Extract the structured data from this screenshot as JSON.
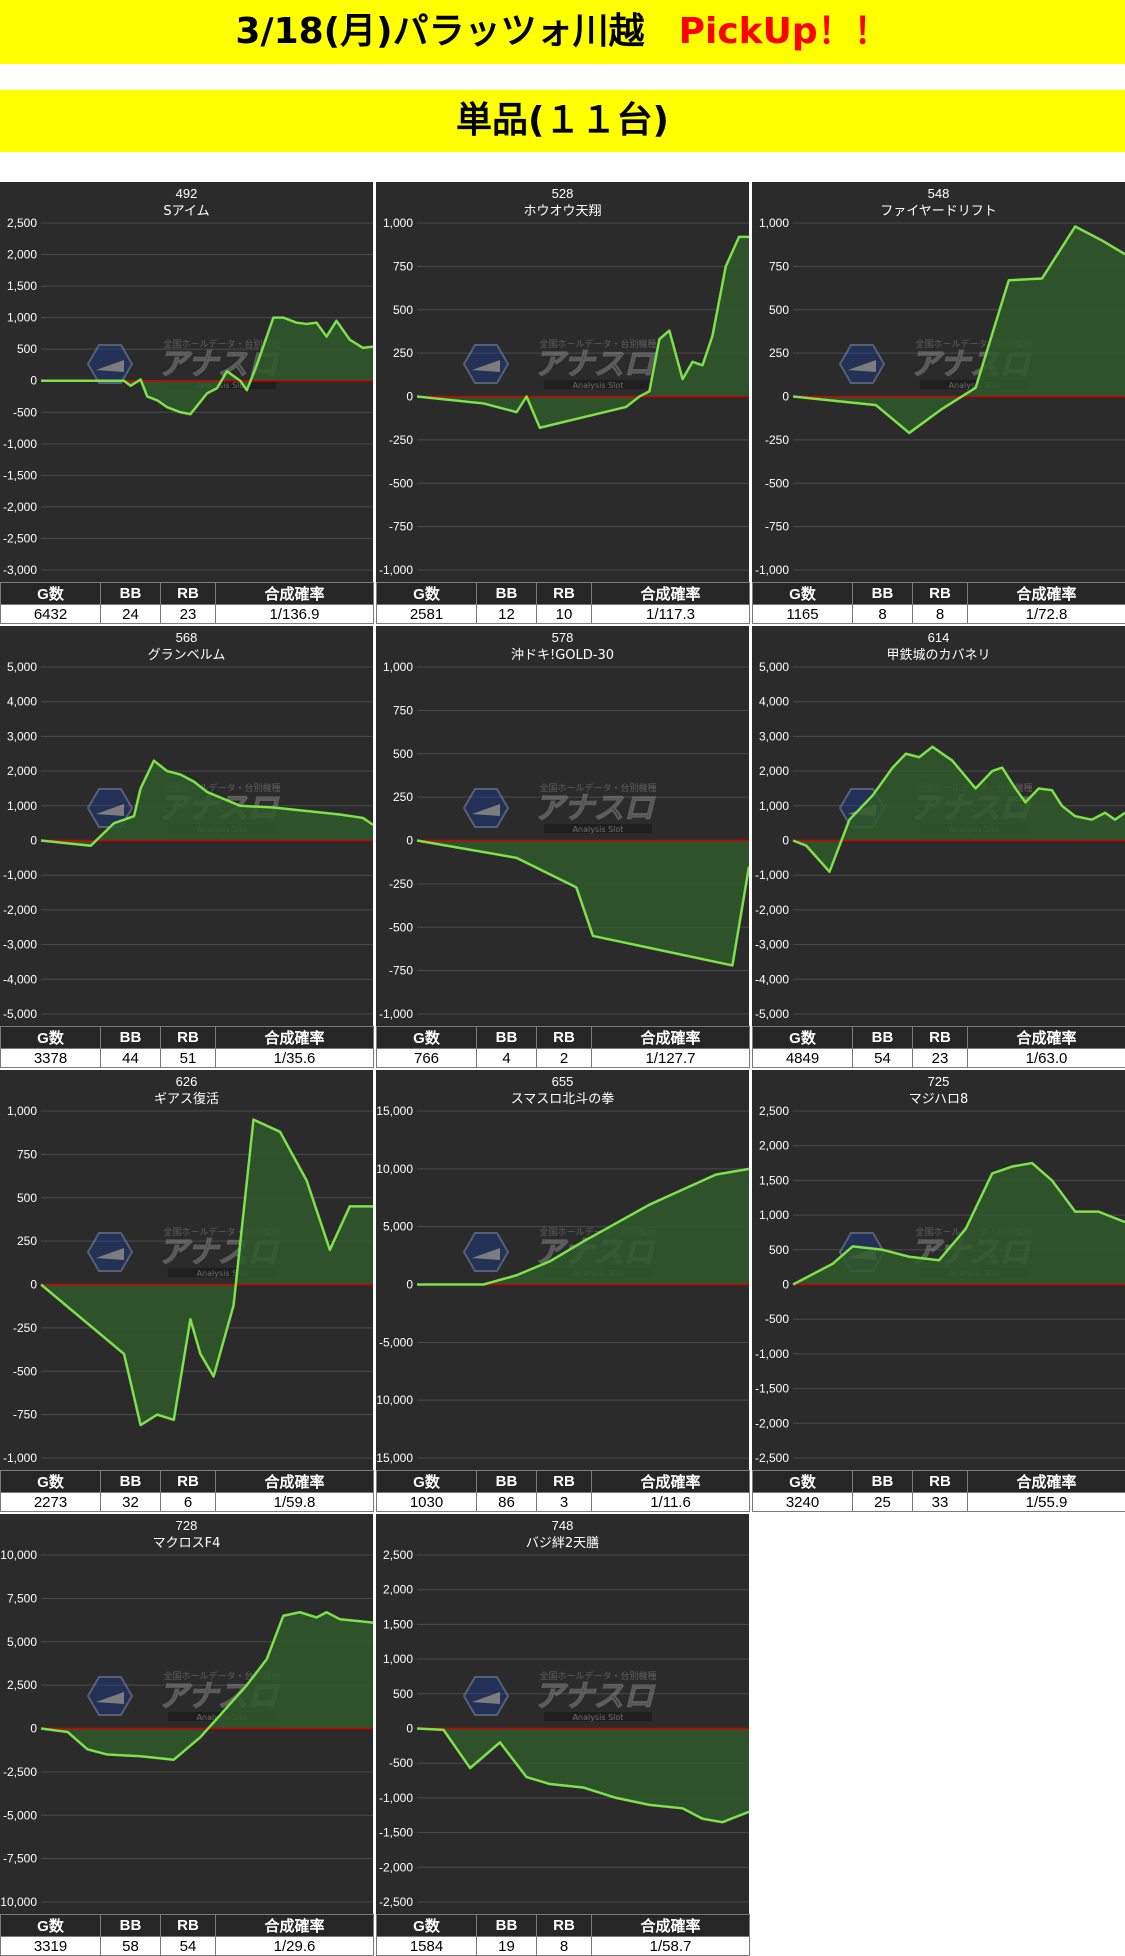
{
  "header": {
    "title": "3/18(月)パラッツォ川越",
    "pickup": "PickUp！！",
    "subtitle": "単品(１１台)"
  },
  "colors": {
    "banner": "#ffff00",
    "pickup": "#ff0000",
    "plot_bg": "#2b2b2b",
    "line": "#7ee04a",
    "fill": "#2f5a2a",
    "zero_line": "#cc0000"
  },
  "watermark": {
    "text": "アナスロ",
    "sub": "Analysis Slot",
    "top": "全国ホールデータ・台別機種"
  },
  "table_headers": [
    "G数",
    "BB",
    "RB",
    "合成確率"
  ],
  "chart_data": [
    {
      "type": "area",
      "number": "492",
      "name": "Sアイム",
      "ylim": [
        -3000,
        2500
      ],
      "yticks": [
        2500,
        2000,
        1500,
        1000,
        500,
        0,
        -500,
        -1000,
        -1500,
        -2000,
        -2500,
        -3000
      ],
      "x": [
        0,
        0.05,
        0.1,
        0.15,
        0.2,
        0.25,
        0.27,
        0.3,
        0.32,
        0.35,
        0.38,
        0.42,
        0.45,
        0.5,
        0.53,
        0.56,
        0.6,
        0.62,
        0.65,
        0.7,
        0.73,
        0.77,
        0.8,
        0.83,
        0.86,
        0.89,
        0.93,
        0.97,
        1.0
      ],
      "y": [
        0,
        0,
        0,
        0,
        0,
        0,
        -80,
        20,
        -250,
        -310,
        -420,
        -500,
        -530,
        -200,
        -120,
        150,
        0,
        -150,
        250,
        1000,
        1000,
        920,
        900,
        920,
        700,
        950,
        650,
        520,
        540
      ],
      "stats": {
        "games": "6432",
        "bb": "24",
        "rb": "23",
        "prob": "1/136.9"
      }
    },
    {
      "type": "area",
      "number": "528",
      "name": "ホウオウ天翔",
      "ylim": [
        -1000,
        1000
      ],
      "yticks": [
        1000,
        750,
        500,
        250,
        0,
        -250,
        -500,
        -750,
        -1000
      ],
      "x": [
        0,
        0.2,
        0.3,
        0.33,
        0.37,
        0.5,
        0.63,
        0.67,
        0.7,
        0.73,
        0.76,
        0.8,
        0.83,
        0.86,
        0.89,
        0.93,
        0.97,
        1.0
      ],
      "y": [
        0,
        -40,
        -90,
        0,
        -180,
        -120,
        -60,
        0,
        30,
        330,
        380,
        100,
        200,
        180,
        350,
        750,
        920,
        920
      ],
      "stats": {
        "games": "2581",
        "bb": "12",
        "rb": "10",
        "prob": "1/117.3"
      }
    },
    {
      "type": "area",
      "number": "548",
      "name": "ファイヤードリフト",
      "ylim": [
        -1000,
        1000
      ],
      "yticks": [
        1000,
        750,
        500,
        250,
        0,
        -250,
        -500,
        -750,
        -1000
      ],
      "x": [
        0,
        0.25,
        0.35,
        0.45,
        0.55,
        0.65,
        0.75,
        0.85,
        0.93,
        1.0
      ],
      "y": [
        0,
        -50,
        -210,
        -70,
        50,
        670,
        680,
        980,
        900,
        820
      ],
      "stats": {
        "games": "1165",
        "bb": "8",
        "rb": "8",
        "prob": "1/72.8"
      }
    },
    {
      "type": "area",
      "number": "568",
      "name": "グランベルム",
      "ylim": [
        -5000,
        5000
      ],
      "yticks": [
        5000,
        4000,
        3000,
        2000,
        1000,
        0,
        -1000,
        -2000,
        -3000,
        -4000,
        -5000
      ],
      "x": [
        0,
        0.15,
        0.22,
        0.28,
        0.3,
        0.34,
        0.38,
        0.42,
        0.46,
        0.5,
        0.55,
        0.6,
        0.7,
        0.8,
        0.9,
        0.97,
        1.0
      ],
      "y": [
        0,
        -150,
        500,
        700,
        1500,
        2300,
        2000,
        1900,
        1700,
        1400,
        1200,
        1000,
        950,
        850,
        750,
        650,
        450
      ],
      "stats": {
        "games": "3378",
        "bb": "44",
        "rb": "51",
        "prob": "1/35.6"
      }
    },
    {
      "type": "area",
      "number": "578",
      "name": "沖ドキ!GOLD-30",
      "ylim": [
        -1000,
        1000
      ],
      "yticks": [
        1000,
        750,
        500,
        250,
        0,
        -250,
        -500,
        -750,
        -1000
      ],
      "x": [
        0,
        0.3,
        0.48,
        0.53,
        0.95,
        1.0
      ],
      "y": [
        0,
        -100,
        -270,
        -550,
        -720,
        -150
      ],
      "stats": {
        "games": "766",
        "bb": "4",
        "rb": "2",
        "prob": "1/127.7"
      }
    },
    {
      "type": "area",
      "number": "614",
      "name": "甲鉄城のカバネリ",
      "ylim": [
        -5000,
        5000
      ],
      "yticks": [
        5000,
        4000,
        3000,
        2000,
        1000,
        0,
        -1000,
        -2000,
        -3000,
        -4000,
        -5000
      ],
      "x": [
        0,
        0.04,
        0.11,
        0.17,
        0.24,
        0.3,
        0.34,
        0.38,
        0.42,
        0.48,
        0.55,
        0.6,
        0.63,
        0.67,
        0.7,
        0.74,
        0.78,
        0.81,
        0.85,
        0.9,
        0.94,
        0.97,
        1.0
      ],
      "y": [
        0,
        -150,
        -900,
        600,
        1300,
        2100,
        2500,
        2400,
        2700,
        2300,
        1500,
        2000,
        2100,
        1500,
        1100,
        1500,
        1450,
        1000,
        700,
        600,
        800,
        600,
        800
      ],
      "stats": {
        "games": "4849",
        "bb": "54",
        "rb": "23",
        "prob": "1/63.0"
      }
    },
    {
      "type": "area",
      "number": "626",
      "name": "ギアス復活",
      "ylim": [
        -1000,
        1000
      ],
      "yticks": [
        1000,
        750,
        500,
        250,
        0,
        -250,
        -500,
        -750,
        -1000
      ],
      "x": [
        0,
        0.25,
        0.3,
        0.35,
        0.4,
        0.45,
        0.48,
        0.52,
        0.58,
        0.64,
        0.72,
        0.8,
        0.87,
        0.93,
        1.0
      ],
      "y": [
        0,
        -400,
        -810,
        -750,
        -780,
        -200,
        -400,
        -530,
        -120,
        950,
        880,
        600,
        200,
        450,
        450
      ],
      "stats": {
        "games": "2273",
        "bb": "32",
        "rb": "6",
        "prob": "1/59.8"
      }
    },
    {
      "type": "area",
      "number": "655",
      "name": "スマスロ北斗の拳",
      "ylim": [
        -15000,
        15000
      ],
      "yticks": [
        15000,
        10000,
        5000,
        0,
        -5000,
        -10000,
        -15000
      ],
      "x": [
        0,
        0.1,
        0.2,
        0.3,
        0.4,
        0.5,
        0.6,
        0.7,
        0.8,
        0.9,
        1.0
      ],
      "y": [
        0,
        0,
        0,
        800,
        2000,
        3700,
        5300,
        6900,
        8200,
        9500,
        10000
      ],
      "stats": {
        "games": "1030",
        "bb": "86",
        "rb": "3",
        "prob": "1/11.6"
      }
    },
    {
      "type": "area",
      "number": "725",
      "name": "マジハロ8",
      "ylim": [
        -2500,
        2500
      ],
      "yticks": [
        2500,
        2000,
        1500,
        1000,
        500,
        0,
        -500,
        -1000,
        -1500,
        -2000,
        -2500
      ],
      "x": [
        0,
        0.12,
        0.18,
        0.27,
        0.35,
        0.44,
        0.52,
        0.6,
        0.66,
        0.72,
        0.78,
        0.85,
        0.92,
        1.0
      ],
      "y": [
        0,
        300,
        550,
        500,
        400,
        350,
        800,
        1600,
        1700,
        1750,
        1500,
        1050,
        1050,
        900
      ],
      "stats": {
        "games": "3240",
        "bb": "25",
        "rb": "33",
        "prob": "1/55.9"
      }
    },
    {
      "type": "area",
      "number": "728",
      "name": "マクロスF4",
      "ylim": [
        -10000,
        10000
      ],
      "yticks": [
        10000,
        7500,
        5000,
        2500,
        0,
        -2500,
        -5000,
        -7500,
        -10000
      ],
      "x": [
        0,
        0.08,
        0.14,
        0.2,
        0.3,
        0.4,
        0.48,
        0.55,
        0.62,
        0.68,
        0.73,
        0.78,
        0.83,
        0.86,
        0.9,
        0.95,
        1.0
      ],
      "y": [
        0,
        -200,
        -1200,
        -1500,
        -1600,
        -1800,
        -500,
        1000,
        2500,
        4000,
        6500,
        6700,
        6400,
        6700,
        6300,
        6200,
        6100
      ],
      "stats": {
        "games": "3319",
        "bb": "58",
        "rb": "54",
        "prob": "1/29.6"
      }
    },
    {
      "type": "area",
      "number": "748",
      "name": "バジ絆2天膳",
      "ylim": [
        -2500,
        2500
      ],
      "yticks": [
        2500,
        2000,
        1500,
        1000,
        500,
        0,
        -500,
        -1000,
        -1500,
        -2000,
        -2500
      ],
      "x": [
        0,
        0.08,
        0.16,
        0.25,
        0.33,
        0.4,
        0.5,
        0.6,
        0.7,
        0.8,
        0.86,
        0.92,
        1.0
      ],
      "y": [
        0,
        -20,
        -570,
        -200,
        -700,
        -800,
        -850,
        -1000,
        -1100,
        -1150,
        -1300,
        -1350,
        -1200
      ],
      "stats": {
        "games": "1584",
        "bb": "19",
        "rb": "8",
        "prob": "1/58.7"
      }
    }
  ]
}
